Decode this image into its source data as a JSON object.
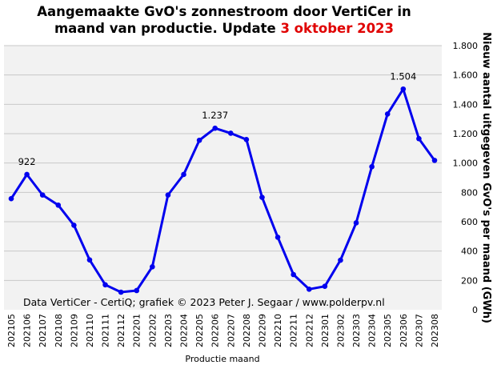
{
  "chart_data": {
    "type": "line",
    "title_line1": "Aangemaakte GvO's zonnestroom door VertiCer in",
    "title_line2_prefix": "maand van productie. Update ",
    "title_line2_highlight": "3 oktober 2023",
    "highlight_color": "#e00000",
    "xlabel": "Productie maand",
    "ylabel": "Nieuw aantal uitgegeven GvO's per maand (GWh)",
    "credit": "Data VertiCer - CertiQ; grafiek © 2023 Peter J. Segaar / www.polderpv.nl",
    "ylim": [
      0,
      1800
    ],
    "yticks": [
      0,
      200,
      400,
      600,
      800,
      1000,
      1200,
      1400,
      1600,
      1800
    ],
    "ytick_labels": [
      "0",
      "200",
      "400",
      "600",
      "800",
      "1.000",
      "1.200",
      "1.400",
      "1.600",
      "1.800"
    ],
    "grid": true,
    "series_color": "#0000ee",
    "plot_background": "#f2f2f2",
    "categories": [
      "202105",
      "202106",
      "202107",
      "202108",
      "202109",
      "202110",
      "202111",
      "202112",
      "202201",
      "202202",
      "202203",
      "202204",
      "202205",
      "202206",
      "202207",
      "202208",
      "202209",
      "202210",
      "202211",
      "202212",
      "202301",
      "202302",
      "202303",
      "202304",
      "202305",
      "202306",
      "202307",
      "202308"
    ],
    "series": [
      {
        "values": [
          757,
          922,
          782,
          713,
          576,
          340,
          170,
          120,
          131,
          293,
          782,
          922,
          1155,
          1237,
          1203,
          1160,
          766,
          494,
          240,
          140,
          160,
          338,
          592,
          975,
          1334,
          1504,
          1166,
          1018
        ]
      }
    ],
    "annotations": [
      {
        "index": 1,
        "text": "922"
      },
      {
        "index": 13,
        "text": "1.237"
      },
      {
        "index": 25,
        "text": "1.504"
      }
    ]
  }
}
